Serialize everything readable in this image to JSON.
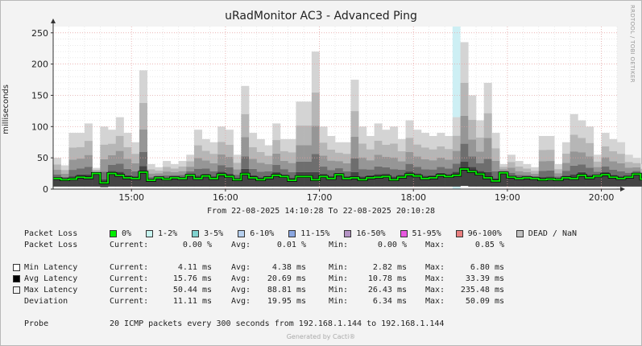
{
  "title": "uRadMonitor AC3 - Advanced Ping",
  "side_label": "RRDTOOL / TOBI OETIKER",
  "footer": "Generated by Cacti®",
  "range_text": "From 22-08-2025 14:10:28 To 22-08-2025 20:10:28",
  "chart_data": {
    "type": "area",
    "ylabel": "milliseconds",
    "ylim": [
      0,
      260
    ],
    "yticks": [
      0,
      50,
      100,
      150,
      200,
      250
    ],
    "x_start": "14:10:28",
    "x_end": "20:10:28",
    "xticks": [
      "15:00",
      "16:00",
      "17:00",
      "18:00",
      "19:00",
      "20:00"
    ],
    "xtick_minutes": [
      50,
      110,
      170,
      230,
      290,
      350
    ],
    "interval_minutes": 5,
    "grid": true,
    "max_latency": [
      50,
      38,
      90,
      90,
      105,
      34,
      100,
      95,
      115,
      90,
      75,
      190,
      40,
      35,
      45,
      40,
      45,
      55,
      95,
      80,
      75,
      100,
      95,
      55,
      165,
      90,
      80,
      70,
      105,
      80,
      80,
      140,
      140,
      220,
      100,
      85,
      75,
      75,
      175,
      100,
      85,
      105,
      95,
      100,
      80,
      110,
      95,
      90,
      85,
      90,
      85,
      115,
      235,
      150,
      110,
      170,
      90,
      40,
      55,
      45,
      40,
      35,
      85,
      85,
      40,
      75,
      120,
      110,
      100,
      55,
      90,
      80,
      75,
      55,
      50,
      40,
      125,
      95,
      90,
      80,
      150,
      85
    ],
    "avg_latency": [
      17,
      15,
      16,
      19,
      18,
      25,
      10,
      25,
      22,
      18,
      17,
      27,
      14,
      18,
      16,
      18,
      17,
      22,
      17,
      21,
      17,
      23,
      20,
      15,
      24,
      18,
      15,
      18,
      22,
      20,
      14,
      20,
      20,
      15,
      20,
      17,
      23,
      17,
      18,
      15,
      18,
      19,
      20,
      15,
      19,
      23,
      21,
      17,
      18,
      22,
      20,
      22,
      32,
      28,
      24,
      18,
      13,
      26,
      19,
      17,
      18,
      17,
      15,
      16,
      15,
      18,
      17,
      22,
      18,
      21,
      23,
      19,
      17,
      19,
      24,
      16,
      20,
      22,
      18,
      19,
      25,
      24
    ],
    "min_latency": [
      4,
      4,
      4,
      4,
      4,
      4,
      3,
      4,
      4,
      4,
      4,
      4,
      4,
      4,
      4,
      4,
      4,
      4,
      4,
      4,
      4,
      4,
      4,
      4,
      4,
      4,
      4,
      4,
      4,
      4,
      4,
      4,
      4,
      4,
      4,
      4,
      4,
      4,
      4,
      4,
      4,
      4,
      4,
      4,
      4,
      4,
      4,
      4,
      4,
      4,
      4,
      4,
      5,
      4,
      4,
      4,
      4,
      4,
      4,
      4,
      4,
      4,
      4,
      4,
      4,
      4,
      4,
      4,
      4,
      4,
      4,
      4,
      4,
      4,
      4,
      4,
      4,
      4,
      4,
      4,
      4,
      4
    ],
    "loss_marker_minutes": [
      255,
      260
    ],
    "colors": {
      "avg_line": "#00ee00",
      "loss_marker": "#cdeff4",
      "grid_major": "#e8a0a0",
      "grid_minor": "#dcdcdc",
      "band_1": "#d4d4d4",
      "band_2": "#b6b6b6",
      "band_3": "#969696",
      "band_4": "#6e6e6e",
      "band_5": "#444444"
    }
  },
  "legend": {
    "loss_label": "Packet Loss",
    "loss_items": [
      {
        "label": "0%",
        "color": "#00ee00"
      },
      {
        "label": "1-2%",
        "color": "#c7f4f0"
      },
      {
        "label": "3-5%",
        "color": "#80d2cf"
      },
      {
        "label": "6-10%",
        "color": "#b7d0ee"
      },
      {
        "label": "11-15%",
        "color": "#8aa6e0"
      },
      {
        "label": "16-50%",
        "color": "#b493c4"
      },
      {
        "label": "51-95%",
        "color": "#e859e0"
      },
      {
        "label": "96-100%",
        "color": "#e97e7e"
      },
      {
        "label": "DEAD / NaN",
        "color": "#c0c0c0"
      }
    ],
    "stats": [
      {
        "label": "Packet Loss",
        "swatch": null,
        "current": "0.00 %",
        "avg": "0.01 %",
        "min": "0.00 %",
        "max": "0.85 %"
      },
      {
        "label": "Min Latency",
        "swatch": "#ffffff",
        "current": "4.11 ms",
        "avg": "4.38 ms",
        "min": "2.82 ms",
        "max": "6.80 ms"
      },
      {
        "label": "Avg Latency",
        "swatch": "#000000",
        "current": "15.76 ms",
        "avg": "20.69 ms",
        "min": "10.78 ms",
        "max": "33.39 ms"
      },
      {
        "label": "Max Latency",
        "swatch": "#f0f0f0",
        "current": "50.44 ms",
        "avg": "88.81 ms",
        "min": "26.43 ms",
        "max": "235.48 ms"
      },
      {
        "label": "Deviation",
        "swatch": null,
        "current": "11.11 ms",
        "avg": "19.95 ms",
        "min": "6.34 ms",
        "max": "50.09 ms"
      }
    ],
    "col_labels": {
      "current": "Current:",
      "avg": "Avg:",
      "min": "Min:",
      "max": "Max:"
    },
    "probe_label": "Probe",
    "probe_text": "20 ICMP packets every 300 seconds from 192.168.1.144 to 192.168.1.144"
  }
}
